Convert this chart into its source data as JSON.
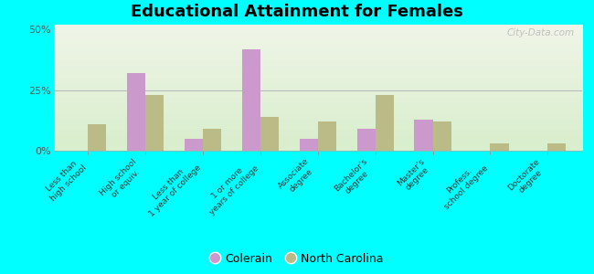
{
  "title": "Educational Attainment for Females",
  "categories": [
    "Less than\nhigh school",
    "High school\nor equiv.",
    "Less than\n1 year of college",
    "1 or more\nyears of college",
    "Associate\ndegree",
    "Bachelor's\ndegree",
    "Master's\ndegree",
    "Profess.\nschool degree",
    "Doctorate\ndegree"
  ],
  "colerain": [
    0.0,
    32.0,
    5.0,
    42.0,
    5.0,
    9.0,
    13.0,
    0.0,
    0.0
  ],
  "north_carolina": [
    11.0,
    23.0,
    9.0,
    14.0,
    12.0,
    23.0,
    12.0,
    3.0,
    3.0
  ],
  "colerain_color": "#cc99cc",
  "nc_color": "#bbbb88",
  "bg_top": "#f0f5e8",
  "bg_bottom": "#d8eecc",
  "outer_background": "#00ffff",
  "yticks": [
    0,
    25,
    50
  ],
  "ylim": [
    0,
    52
  ],
  "bar_width": 0.32,
  "watermark": "City-Data.com",
  "legend_colerain": "Colerain",
  "legend_nc": "North Carolina",
  "title_fontsize": 13,
  "label_fontsize": 6.5,
  "ytick_fontsize": 8
}
